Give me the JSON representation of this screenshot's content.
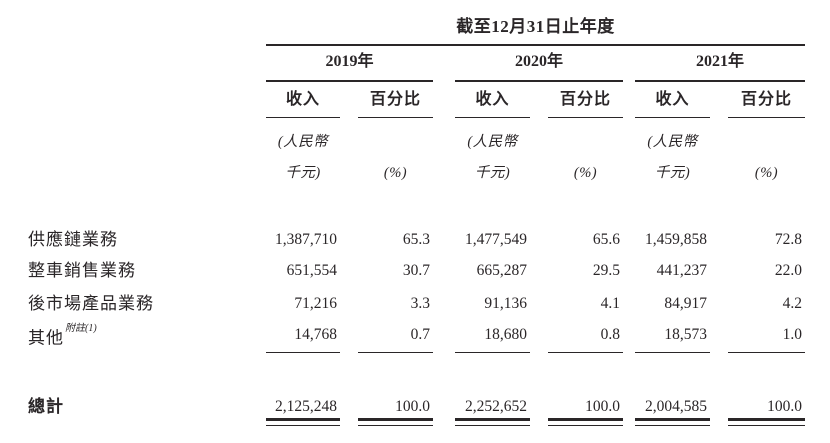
{
  "colors": {
    "ink": "#2a2628",
    "background": "#ffffff"
  },
  "table": {
    "period_header": "截至12月31日止年度",
    "year_groups": [
      {
        "year": "2019年"
      },
      {
        "year": "2020年"
      },
      {
        "year": "2021年"
      }
    ],
    "column_headers": {
      "revenue": "收入",
      "percentage": "百分比"
    },
    "subheaders": {
      "currency_line1": "(人民幣",
      "currency_line2": "千元)",
      "percent_unit": "(%)"
    },
    "rows": [
      {
        "label": "供應鏈業務",
        "note": "",
        "values": [
          "1,387,710",
          "65.3",
          "1,477,549",
          "65.6",
          "1,459,858",
          "72.8"
        ]
      },
      {
        "label": "整車銷售業務",
        "note": "",
        "values": [
          "651,554",
          "30.7",
          "665,287",
          "29.5",
          "441,237",
          "22.0"
        ]
      },
      {
        "label": "後市場產品業務",
        "note": "",
        "values": [
          "71,216",
          "3.3",
          "91,136",
          "4.1",
          "84,917",
          "4.2"
        ]
      },
      {
        "label": "其他",
        "note": "附註(1)",
        "values": [
          "14,768",
          "0.7",
          "18,680",
          "0.8",
          "18,573",
          "1.0"
        ]
      }
    ],
    "total": {
      "label": "總計",
      "values": [
        "2,125,248",
        "100.0",
        "2,252,652",
        "100.0",
        "2,004,585",
        "100.0"
      ]
    }
  }
}
